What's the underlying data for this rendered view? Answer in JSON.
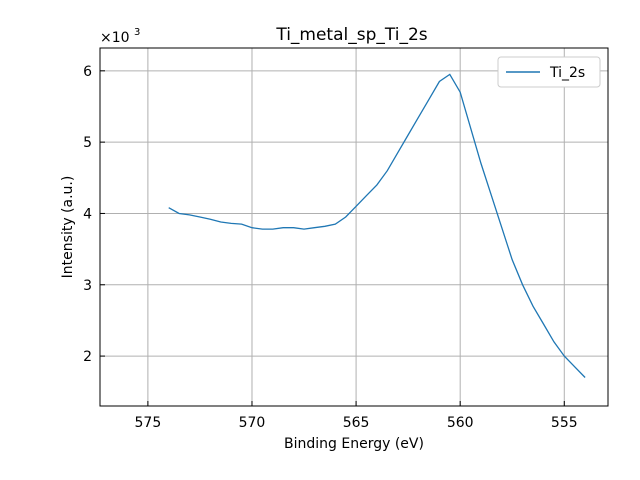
{
  "chart_data": {
    "type": "line",
    "title": "Ti_metal_sp_Ti_2s",
    "xlabel": "Binding Energy (eV)",
    "ylabel": "Intensity (a.u.)",
    "y_multiplier_label": "×10",
    "y_multiplier_exp": "3",
    "xlim": [
      577.3,
      552.9
    ],
    "ylim": [
      1.3,
      6.32
    ],
    "x_ticks": [
      575,
      570,
      565,
      560,
      555
    ],
    "y_ticks": [
      2,
      3,
      4,
      5,
      6
    ],
    "grid": true,
    "legend_position": "top-right",
    "series": [
      {
        "name": "Ti_2s",
        "color": "#1f77b4",
        "x": [
          574.0,
          573.5,
          573.0,
          572.5,
          572.0,
          571.5,
          571.0,
          570.5,
          570.0,
          569.5,
          569.0,
          568.5,
          568.0,
          567.5,
          567.0,
          566.5,
          566.0,
          565.5,
          565.0,
          564.5,
          564.0,
          563.5,
          563.0,
          562.5,
          562.0,
          561.5,
          561.0,
          560.5,
          560.0,
          559.5,
          559.0,
          558.5,
          558.0,
          557.5,
          557.0,
          556.5,
          556.0,
          555.5,
          555.0,
          554.5,
          554.0
        ],
        "y": [
          4.08,
          4.0,
          3.98,
          3.95,
          3.92,
          3.88,
          3.86,
          3.85,
          3.8,
          3.78,
          3.78,
          3.8,
          3.8,
          3.78,
          3.8,
          3.82,
          3.85,
          3.95,
          4.1,
          4.25,
          4.4,
          4.6,
          4.85,
          5.1,
          5.35,
          5.6,
          5.85,
          5.95,
          5.7,
          5.2,
          4.7,
          4.25,
          3.8,
          3.35,
          3.0,
          2.7,
          2.45,
          2.2,
          2.0,
          1.85,
          1.7
        ]
      }
    ]
  }
}
